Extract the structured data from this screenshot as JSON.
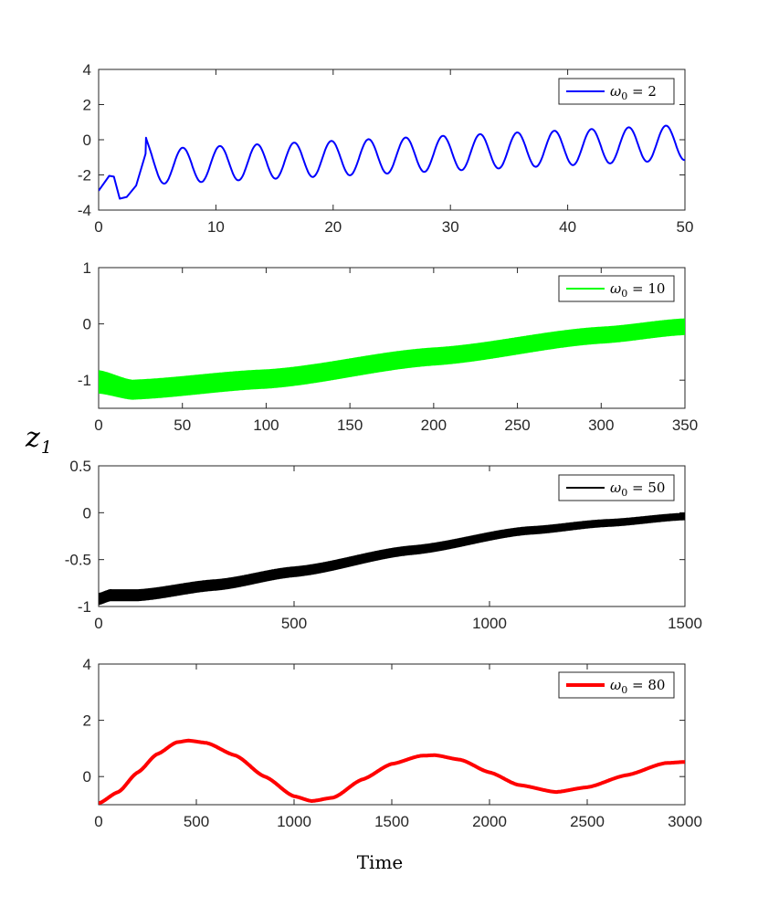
{
  "chart_data": [
    {
      "type": "line",
      "series_name": "ω₀ = 2",
      "legend": {
        "symbol": "ω",
        "subscript": "0",
        "value": "2"
      },
      "color": "#0000ff",
      "xlim": [
        0,
        50
      ],
      "ylim": [
        -4,
        4
      ],
      "xticks": [
        0,
        10,
        20,
        30,
        40,
        50
      ],
      "yticks": [
        -4,
        -2,
        0,
        2,
        4
      ],
      "period": 3.17,
      "phase": 1.0,
      "amplitude_start": 1.0,
      "amplitude_end": 1.0,
      "mean_start": -1.55,
      "mean_end": -0.15,
      "points": [
        [
          0,
          -2.9
        ],
        [
          0.9,
          -2.05
        ],
        [
          1.3,
          -2.1
        ],
        [
          1.8,
          -3.35
        ],
        [
          2.4,
          -3.25
        ],
        [
          3.2,
          -2.6
        ],
        [
          4.0,
          -0.8
        ]
      ]
    },
    {
      "type": "line",
      "series_name": "ω₀ = 10",
      "legend": {
        "symbol": "ω",
        "subscript": "0",
        "value": "10"
      },
      "color": "#00ff00",
      "xlim": [
        0,
        350
      ],
      "ylim": [
        -1.5,
        1
      ],
      "xticks": [
        0,
        50,
        100,
        150,
        200,
        250,
        300,
        350
      ],
      "yticks": [
        -1,
        0,
        1
      ],
      "ytick_labels": [
        "-1",
        "0",
        "1"
      ],
      "band": true,
      "center": [
        [
          0,
          -1.03
        ],
        [
          20,
          -1.17
        ],
        [
          100,
          -0.98
        ],
        [
          200,
          -0.58
        ],
        [
          300,
          -0.2
        ],
        [
          350,
          -0.05
        ]
      ],
      "halfwidth": [
        [
          0,
          0.2
        ],
        [
          20,
          0.17
        ],
        [
          350,
          0.14
        ]
      ]
    },
    {
      "type": "line",
      "series_name": "ω₀ = 50",
      "legend": {
        "symbol": "ω",
        "subscript": "0",
        "value": "50"
      },
      "color": "#000000",
      "xlim": [
        0,
        1500
      ],
      "ylim": [
        -1,
        0.5
      ],
      "xticks": [
        0,
        500,
        1000,
        1500
      ],
      "yticks": [
        -1,
        -0.5,
        0,
        0.5
      ],
      "ytick_labels": [
        "-1",
        "-0.5",
        "0",
        "0.5"
      ],
      "band": true,
      "center": [
        [
          0,
          -0.92
        ],
        [
          30,
          -0.88
        ],
        [
          100,
          -0.88
        ],
        [
          300,
          -0.77
        ],
        [
          500,
          -0.63
        ],
        [
          800,
          -0.4
        ],
        [
          1100,
          -0.19
        ],
        [
          1300,
          -0.11
        ],
        [
          1500,
          -0.04
        ]
      ],
      "halfwidth": [
        [
          0,
          0.06
        ],
        [
          1500,
          0.035
        ]
      ]
    },
    {
      "type": "line",
      "series_name": "ω₀ = 80",
      "legend": {
        "symbol": "ω",
        "subscript": "0",
        "value": "80"
      },
      "color": "#ff0000",
      "xlim": [
        0,
        3000
      ],
      "ylim": [
        -1,
        4
      ],
      "xticks": [
        0,
        500,
        1000,
        1500,
        2000,
        2500,
        3000
      ],
      "yticks": [
        0,
        2,
        4
      ],
      "points": [
        [
          0,
          -0.95
        ],
        [
          100,
          -0.55
        ],
        [
          200,
          0.15
        ],
        [
          300,
          0.8
        ],
        [
          400,
          1.22
        ],
        [
          460,
          1.28
        ],
        [
          550,
          1.2
        ],
        [
          700,
          0.75
        ],
        [
          850,
          0.0
        ],
        [
          1000,
          -0.7
        ],
        [
          1090,
          -0.87
        ],
        [
          1200,
          -0.75
        ],
        [
          1350,
          -0.1
        ],
        [
          1500,
          0.45
        ],
        [
          1650,
          0.74
        ],
        [
          1720,
          0.76
        ],
        [
          1850,
          0.6
        ],
        [
          2000,
          0.15
        ],
        [
          2150,
          -0.3
        ],
        [
          2340,
          -0.55
        ],
        [
          2500,
          -0.38
        ],
        [
          2700,
          0.05
        ],
        [
          2900,
          0.48
        ],
        [
          3000,
          0.52
        ]
      ]
    }
  ],
  "ylabel": {
    "symbol": "z",
    "subscript": "1"
  },
  "xlabel": "Time"
}
